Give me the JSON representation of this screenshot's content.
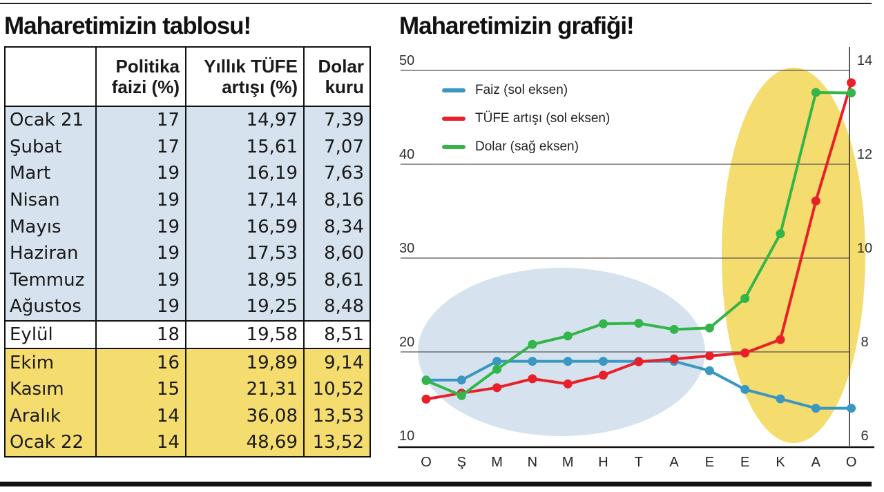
{
  "left_title": "Maharetimizin tablosu!",
  "right_title": "Maharetimizin grafiği!",
  "table": {
    "headers": [
      "",
      "Politika faizi (%)",
      "Yıllık TÜFE artışı (%)",
      "Dolar kuru"
    ],
    "header_lines": [
      [
        "",
        ""
      ],
      [
        "Politika",
        "faizi (%)"
      ],
      [
        "Yıllık TÜFE",
        "artışı (%)"
      ],
      [
        "Dolar",
        "kuru"
      ]
    ],
    "rows": [
      {
        "month": "Ocak 21",
        "faiz": "17",
        "tufe": "14,97",
        "dolar": "7,39",
        "group": "blue"
      },
      {
        "month": "Şubat",
        "faiz": "17",
        "tufe": "15,61",
        "dolar": "7,07",
        "group": "blue"
      },
      {
        "month": "Mart",
        "faiz": "19",
        "tufe": "16,19",
        "dolar": "7,63",
        "group": "blue"
      },
      {
        "month": "Nisan",
        "faiz": "19",
        "tufe": "17,14",
        "dolar": "8,16",
        "group": "blue"
      },
      {
        "month": "Mayıs",
        "faiz": "19",
        "tufe": "16,59",
        "dolar": "8,34",
        "group": "blue"
      },
      {
        "month": "Haziran",
        "faiz": "19",
        "tufe": "17,53",
        "dolar": "8,60",
        "group": "blue"
      },
      {
        "month": "Temmuz",
        "faiz": "19",
        "tufe": "18,95",
        "dolar": "8,61",
        "group": "blue"
      },
      {
        "month": "Ağustos",
        "faiz": "19",
        "tufe": "19,25",
        "dolar": "8,48",
        "group": "blue"
      },
      {
        "month": "Eylül",
        "faiz": "18",
        "tufe": "19,58",
        "dolar": "8,51",
        "group": "white"
      },
      {
        "month": "Ekim",
        "faiz": "16",
        "tufe": "19,89",
        "dolar": "9,14",
        "group": "yellow"
      },
      {
        "month": "Kasım",
        "faiz": "15",
        "tufe": "21,31",
        "dolar": "10,52",
        "group": "yellow"
      },
      {
        "month": "Aralık",
        "faiz": "14",
        "tufe": "36,08",
        "dolar": "13,53",
        "group": "yellow"
      },
      {
        "month": "Ocak 22",
        "faiz": "14",
        "tufe": "48,69",
        "dolar": "13,52",
        "group": "yellow"
      }
    ]
  },
  "colors": {
    "faiz": "#3a97c2",
    "tufe": "#e8202a",
    "dolar": "#34b54a",
    "blue_fill": "#d6e3ee",
    "yellow_fill": "#f5dc6e"
  },
  "chart_data": {
    "type": "line",
    "x": [
      "O",
      "Ş",
      "M",
      "N",
      "M",
      "H",
      "T",
      "A",
      "E",
      "E",
      "K",
      "A",
      "O"
    ],
    "left_axis": {
      "ylim": [
        10,
        50
      ],
      "ticks": [
        "10",
        "20",
        "30",
        "40",
        "50"
      ]
    },
    "right_axis": {
      "ylim": [
        6,
        14
      ],
      "ticks": [
        "6",
        "8",
        "10",
        "12",
        "14"
      ]
    },
    "grid": true,
    "legend_position": "top-left",
    "series": [
      {
        "name": "Faiz (sol eksen)",
        "axis": "left",
        "color": "#3a97c2",
        "values": [
          17,
          17,
          19,
          19,
          19,
          19,
          19,
          19,
          18,
          16,
          15,
          14,
          14
        ]
      },
      {
        "name": "TÜFE artışı (sol eksen)",
        "axis": "left",
        "color": "#e8202a",
        "values": [
          14.97,
          15.61,
          16.19,
          17.14,
          16.59,
          17.53,
          18.95,
          19.25,
          19.58,
          19.89,
          21.31,
          36.08,
          48.69
        ]
      },
      {
        "name": "Dolar (sağ eksen)",
        "axis": "right",
        "color": "#34b54a",
        "values": [
          7.39,
          7.07,
          7.63,
          8.16,
          8.34,
          8.6,
          8.61,
          8.48,
          8.51,
          9.14,
          10.52,
          13.53,
          13.52
        ]
      }
    ]
  }
}
